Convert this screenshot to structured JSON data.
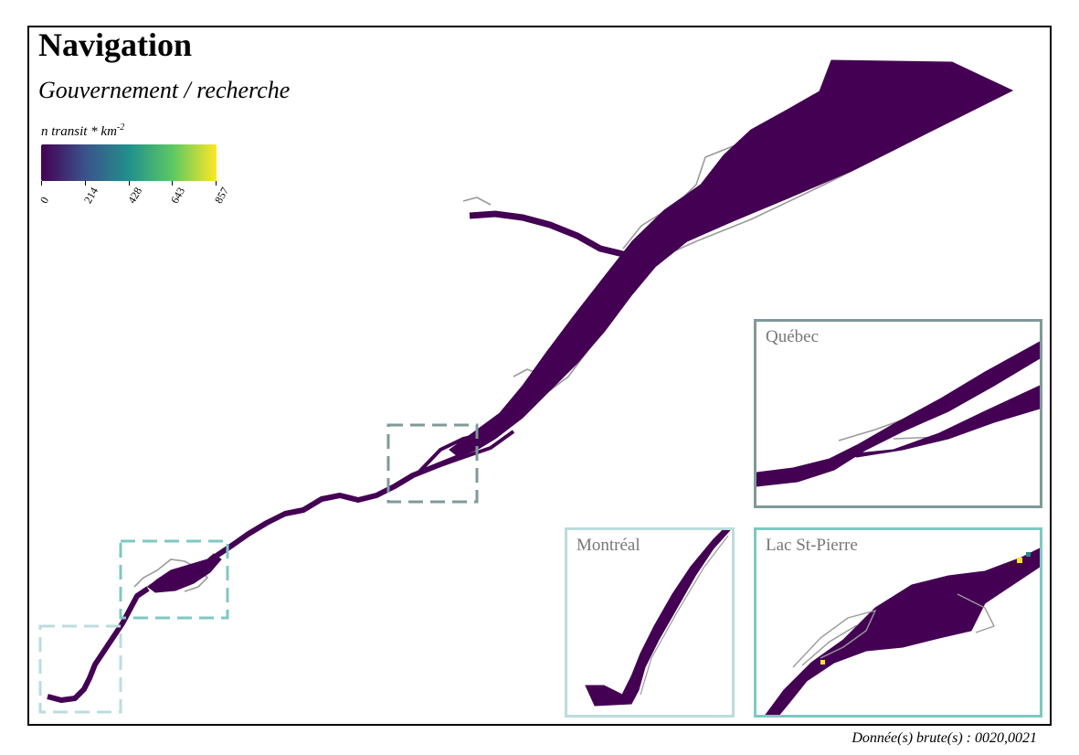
{
  "map": {
    "title": "Navigation",
    "subtitle": "Gouvernement / recherche",
    "source": "Donnée(s) brute(s) : 0020,0021"
  },
  "legend": {
    "title_base": "n transit * km",
    "title_exponent": "-2",
    "ticks": [
      "0",
      "214",
      "428",
      "643",
      "857"
    ],
    "colors": [
      "#440154",
      "#3b528b",
      "#21908d",
      "#5dc863",
      "#fde725"
    ]
  },
  "insets": {
    "quebec": {
      "label": "Québec",
      "border_color": "#7f9a98"
    },
    "montreal": {
      "label": "Montréal",
      "border_color": "#bcdcdd"
    },
    "lac_st_pierre": {
      "label": "Lac St-Pierre",
      "border_color": "#7fc8c3"
    }
  },
  "colors": {
    "density_low": "#440154",
    "coastline": "#9a9a9a",
    "frame": "#000000"
  }
}
